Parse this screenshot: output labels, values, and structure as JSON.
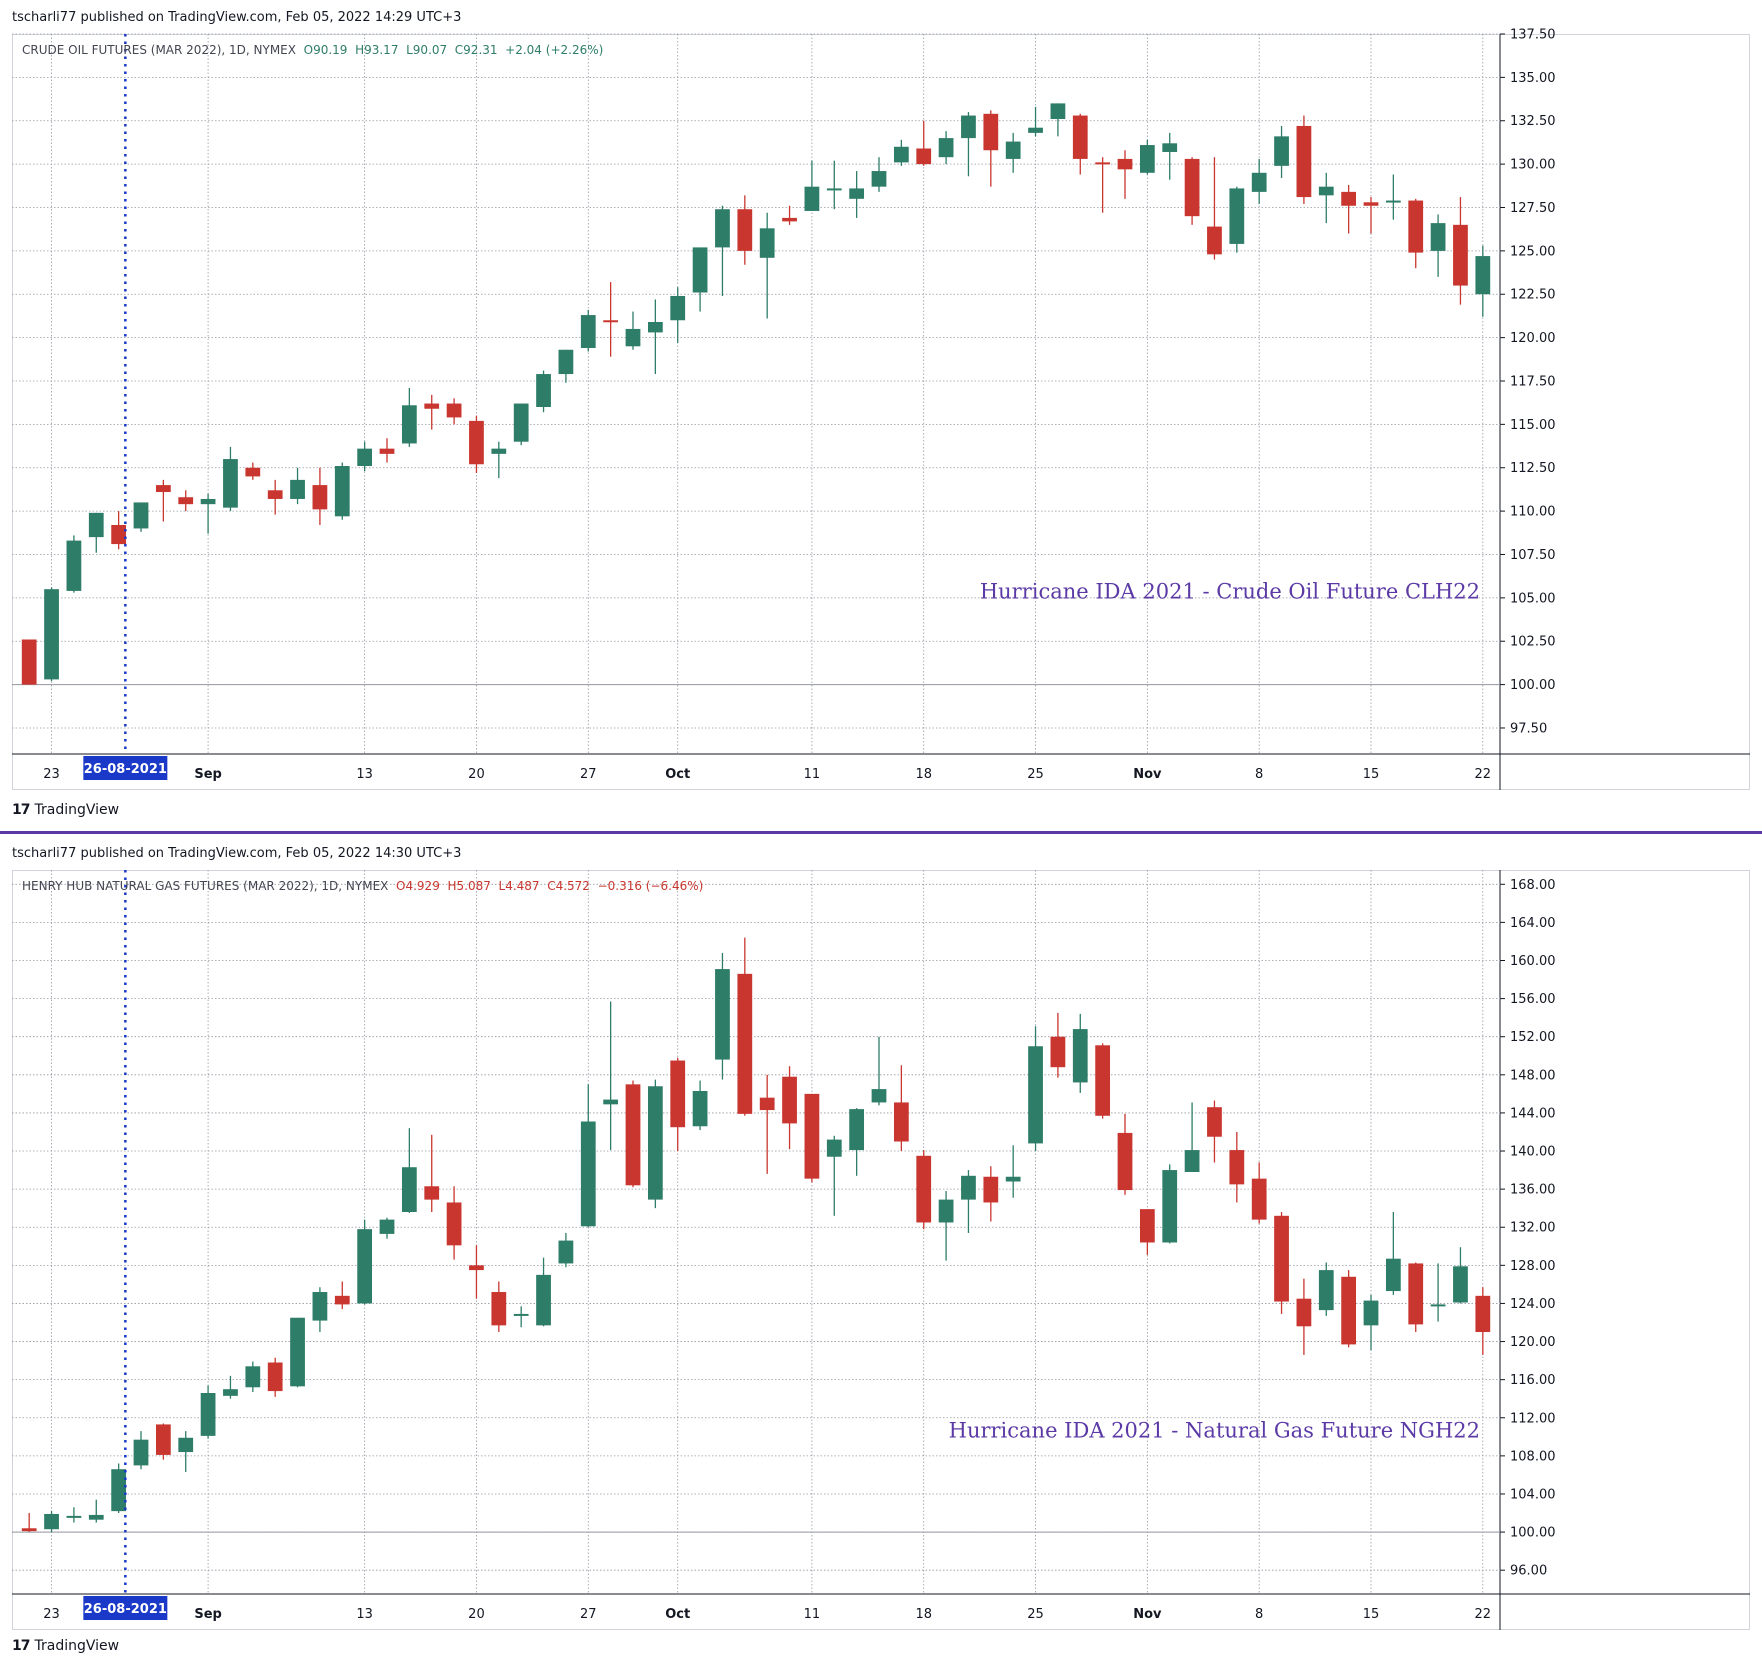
{
  "divider_color": "#5b3aa6",
  "colors": {
    "up": "#2e7d68",
    "down": "#c9362f",
    "marker": "#1a39c8",
    "watermark": "#5b3aa6"
  },
  "brand": {
    "icon": "tradingview-logo-icon",
    "label": "TradingView"
  },
  "chart_data": [
    {
      "type": "candlestick",
      "publisher": "tscharli77 published on TradingView.com, Feb 05, 2022 14:29 UTC+3",
      "symbol_line": "CRUDE OIL FUTURES (MAR 2022), 1D, NYMEX",
      "ohlc_text": {
        "o": "O90.19",
        "h": "H93.17",
        "l": "L90.07",
        "c": "C92.31",
        "chg": "+2.04 (+2.26%)"
      },
      "ohlc_color": "up",
      "watermark": "Hurricane IDA 2021 - Crude Oil Future CLH22",
      "ylim": [
        96.0,
        137.5
      ],
      "y_ticks": [
        "97.50",
        "100.00",
        "102.50",
        "105.00",
        "107.50",
        "110.00",
        "112.50",
        "115.00",
        "117.50",
        "120.00",
        "122.50",
        "125.00",
        "127.50",
        "130.00",
        "132.50",
        "135.00",
        "137.50"
      ],
      "y_tick_values": [
        97.5,
        100,
        102.5,
        105,
        107.5,
        110,
        112.5,
        115,
        117.5,
        120,
        122.5,
        125,
        127.5,
        130,
        132.5,
        135,
        137.5
      ],
      "baseline": 100,
      "x_labels": [
        {
          "i": 1,
          "text": "23",
          "bold": false
        },
        {
          "i": 8,
          "text": "Sep",
          "bold": true
        },
        {
          "i": 15,
          "text": "13",
          "bold": false
        },
        {
          "i": 20,
          "text": "20",
          "bold": false
        },
        {
          "i": 25,
          "text": "27",
          "bold": false
        },
        {
          "i": 29,
          "text": "Oct",
          "bold": true
        },
        {
          "i": 35,
          "text": "11",
          "bold": false
        },
        {
          "i": 40,
          "text": "18",
          "bold": false
        },
        {
          "i": 45,
          "text": "25",
          "bold": false
        },
        {
          "i": 50,
          "text": "Nov",
          "bold": true
        },
        {
          "i": 55,
          "text": "8",
          "bold": false
        },
        {
          "i": 60,
          "text": "15",
          "bold": false
        },
        {
          "i": 65,
          "text": "22",
          "bold": false
        }
      ],
      "marker": {
        "i": 4.3,
        "label": "26-08-2021"
      },
      "candles": [
        [
          102.6,
          102.6,
          100.0,
          100.0
        ],
        [
          100.3,
          105.6,
          100.2,
          105.5
        ],
        [
          105.4,
          108.6,
          105.3,
          108.3
        ],
        [
          108.5,
          109.9,
          107.6,
          109.9
        ],
        [
          109.2,
          110.0,
          107.8,
          108.1
        ],
        [
          109.0,
          110.5,
          108.8,
          110.5
        ],
        [
          111.5,
          111.8,
          109.4,
          111.1
        ],
        [
          110.8,
          111.2,
          110.0,
          110.4
        ],
        [
          110.4,
          111.0,
          108.7,
          110.7
        ],
        [
          110.2,
          113.7,
          110.0,
          113.0
        ],
        [
          112.5,
          112.8,
          111.8,
          112.0
        ],
        [
          111.2,
          111.8,
          109.8,
          110.7
        ],
        [
          110.7,
          112.5,
          110.4,
          111.8
        ],
        [
          111.5,
          112.5,
          109.2,
          110.1
        ],
        [
          109.7,
          112.8,
          109.5,
          112.6
        ],
        [
          112.6,
          114.0,
          112.3,
          113.6
        ],
        [
          113.6,
          114.2,
          112.8,
          113.3
        ],
        [
          113.9,
          117.1,
          113.7,
          116.1
        ],
        [
          116.2,
          116.7,
          114.7,
          115.9
        ],
        [
          116.2,
          116.5,
          115.0,
          115.4
        ],
        [
          115.2,
          115.5,
          112.2,
          112.7
        ],
        [
          113.3,
          114.0,
          111.9,
          113.6
        ],
        [
          114.0,
          116.0,
          113.8,
          116.2
        ],
        [
          116.0,
          118.1,
          115.7,
          117.9
        ],
        [
          117.9,
          119.3,
          117.4,
          119.3
        ],
        [
          119.4,
          121.6,
          119.2,
          121.3
        ],
        [
          121.0,
          123.2,
          118.9,
          120.9
        ],
        [
          119.5,
          121.5,
          119.3,
          120.5
        ],
        [
          120.3,
          122.2,
          117.9,
          120.9
        ],
        [
          121.0,
          122.9,
          119.7,
          122.4
        ],
        [
          122.6,
          124.9,
          121.5,
          125.2
        ],
        [
          125.2,
          127.6,
          122.4,
          127.4
        ],
        [
          127.4,
          128.2,
          124.2,
          125.0
        ],
        [
          124.6,
          127.2,
          121.1,
          126.3
        ],
        [
          126.9,
          127.6,
          126.5,
          126.7
        ],
        [
          127.3,
          130.2,
          127.3,
          128.7
        ],
        [
          128.6,
          130.2,
          127.4,
          128.6
        ],
        [
          128.0,
          129.6,
          126.9,
          128.6
        ],
        [
          128.7,
          130.4,
          128.4,
          129.6
        ],
        [
          130.1,
          131.4,
          129.9,
          131.0
        ],
        [
          130.9,
          132.5,
          129.9,
          130.0
        ],
        [
          130.4,
          131.9,
          130.0,
          131.5
        ],
        [
          131.5,
          133.0,
          129.3,
          132.8
        ],
        [
          132.9,
          133.1,
          128.7,
          130.8
        ],
        [
          130.3,
          131.8,
          129.5,
          131.3
        ],
        [
          131.8,
          133.3,
          131.6,
          132.1
        ],
        [
          132.6,
          133.5,
          131.6,
          133.5
        ],
        [
          132.8,
          132.9,
          129.4,
          130.3
        ],
        [
          130.1,
          130.4,
          127.2,
          130.0
        ],
        [
          130.3,
          130.8,
          128.0,
          129.7
        ],
        [
          129.5,
          131.4,
          129.4,
          131.1
        ],
        [
          130.7,
          131.8,
          129.1,
          131.2
        ],
        [
          130.3,
          130.4,
          126.5,
          127.0
        ],
        [
          126.4,
          130.4,
          124.5,
          124.8
        ],
        [
          125.4,
          128.7,
          124.9,
          128.6
        ],
        [
          128.4,
          130.3,
          127.7,
          129.5
        ],
        [
          129.9,
          132.2,
          129.2,
          131.6
        ],
        [
          132.2,
          132.8,
          127.7,
          128.1
        ],
        [
          128.2,
          129.5,
          126.6,
          128.7
        ],
        [
          128.4,
          128.8,
          126.0,
          127.6
        ],
        [
          127.8,
          128.1,
          126.0,
          127.6
        ],
        [
          127.8,
          129.4,
          126.8,
          127.9
        ],
        [
          127.9,
          128.0,
          124.0,
          124.9
        ],
        [
          125.0,
          127.1,
          123.5,
          126.6
        ],
        [
          126.5,
          128.1,
          121.9,
          123.0
        ],
        [
          122.5,
          125.3,
          121.2,
          124.7
        ]
      ]
    },
    {
      "type": "candlestick",
      "publisher": "tscharli77 published on TradingView.com, Feb 05, 2022 14:30 UTC+3",
      "symbol_line": "HENRY HUB NATURAL GAS FUTURES (MAR 2022), 1D, NYMEX",
      "ohlc_text": {
        "o": "O4.929",
        "h": "H5.087",
        "l": "L4.487",
        "c": "C4.572",
        "chg": "−0.316 (−6.46%)"
      },
      "ohlc_color": "down",
      "watermark": "Hurricane IDA 2021 - Natural Gas Future NGH22",
      "ylim": [
        93.5,
        169.5
      ],
      "y_ticks": [
        "96.00",
        "100.00",
        "104.00",
        "108.00",
        "112.00",
        "116.00",
        "120.00",
        "124.00",
        "128.00",
        "132.00",
        "136.00",
        "140.00",
        "144.00",
        "148.00",
        "152.00",
        "156.00",
        "160.00",
        "164.00",
        "168.00"
      ],
      "y_tick_values": [
        96,
        100,
        104,
        108,
        112,
        116,
        120,
        124,
        128,
        132,
        136,
        140,
        144,
        148,
        152,
        156,
        160,
        164,
        168
      ],
      "baseline": 100,
      "x_labels": [
        {
          "i": 1,
          "text": "23",
          "bold": false
        },
        {
          "i": 8,
          "text": "Sep",
          "bold": true
        },
        {
          "i": 15,
          "text": "13",
          "bold": false
        },
        {
          "i": 20,
          "text": "20",
          "bold": false
        },
        {
          "i": 25,
          "text": "27",
          "bold": false
        },
        {
          "i": 29,
          "text": "Oct",
          "bold": true
        },
        {
          "i": 35,
          "text": "11",
          "bold": false
        },
        {
          "i": 40,
          "text": "18",
          "bold": false
        },
        {
          "i": 45,
          "text": "25",
          "bold": false
        },
        {
          "i": 50,
          "text": "Nov",
          "bold": true
        },
        {
          "i": 55,
          "text": "8",
          "bold": false
        },
        {
          "i": 60,
          "text": "15",
          "bold": false
        },
        {
          "i": 65,
          "text": "22",
          "bold": false
        }
      ],
      "marker": {
        "i": 4.3,
        "label": "26-08-2021"
      },
      "candles": [
        [
          100.4,
          102.0,
          100.0,
          100.1
        ],
        [
          100.3,
          102.2,
          100.0,
          101.9
        ],
        [
          101.5,
          102.6,
          101.0,
          101.7
        ],
        [
          101.3,
          103.4,
          101.0,
          101.8
        ],
        [
          102.2,
          107.2,
          102.0,
          106.6
        ],
        [
          107.0,
          110.6,
          106.6,
          109.7
        ],
        [
          111.3,
          111.4,
          107.6,
          108.1
        ],
        [
          108.4,
          110.6,
          106.3,
          109.9
        ],
        [
          110.1,
          115.4,
          109.8,
          114.6
        ],
        [
          114.3,
          116.4,
          114.0,
          115.0
        ],
        [
          115.2,
          117.9,
          114.7,
          117.4
        ],
        [
          117.8,
          118.3,
          114.2,
          114.8
        ],
        [
          115.3,
          122.4,
          115.2,
          122.5
        ],
        [
          122.2,
          125.7,
          121.0,
          125.2
        ],
        [
          124.8,
          126.3,
          123.4,
          123.9
        ],
        [
          124.0,
          132.8,
          123.9,
          131.8
        ],
        [
          131.3,
          133.0,
          130.8,
          132.8
        ],
        [
          133.6,
          142.4,
          133.5,
          138.3
        ],
        [
          136.3,
          141.7,
          133.6,
          134.9
        ],
        [
          134.6,
          136.3,
          128.6,
          130.1
        ],
        [
          128.0,
          130.1,
          124.5,
          127.5
        ],
        [
          125.2,
          126.3,
          121.0,
          121.7
        ],
        [
          122.7,
          123.7,
          121.5,
          122.9
        ],
        [
          121.7,
          128.8,
          121.6,
          127.0
        ],
        [
          128.2,
          131.4,
          127.8,
          130.6
        ],
        [
          132.1,
          147.0,
          132.0,
          143.1
        ],
        [
          144.9,
          155.7,
          140.1,
          145.4
        ],
        [
          147.0,
          147.4,
          136.2,
          136.4
        ],
        [
          134.9,
          147.5,
          134.0,
          146.8
        ],
        [
          149.5,
          149.8,
          140.0,
          142.5
        ],
        [
          142.6,
          147.4,
          142.2,
          146.3
        ],
        [
          149.6,
          160.8,
          147.5,
          159.1
        ],
        [
          158.6,
          162.4,
          143.7,
          143.9
        ],
        [
          145.6,
          148.0,
          137.6,
          144.3
        ],
        [
          147.8,
          148.9,
          140.2,
          142.9
        ],
        [
          146.0,
          146.0,
          136.7,
          137.1
        ],
        [
          139.4,
          141.6,
          133.2,
          141.2
        ],
        [
          140.1,
          144.5,
          137.4,
          144.4
        ],
        [
          145.1,
          152.0,
          144.8,
          146.5
        ],
        [
          145.1,
          149.0,
          140.0,
          141.0
        ],
        [
          139.5,
          140.1,
          131.8,
          132.5
        ],
        [
          132.5,
          135.8,
          128.5,
          134.9
        ],
        [
          134.9,
          138.0,
          131.4,
          137.4
        ],
        [
          137.3,
          138.4,
          132.6,
          134.6
        ],
        [
          136.8,
          140.6,
          135.1,
          137.3
        ],
        [
          140.8,
          153.1,
          140.0,
          151.0
        ],
        [
          152.0,
          154.5,
          147.7,
          148.8
        ],
        [
          147.2,
          154.4,
          146.1,
          152.8
        ],
        [
          151.1,
          151.3,
          143.4,
          143.7
        ],
        [
          141.9,
          143.9,
          135.4,
          135.9
        ],
        [
          133.9,
          133.9,
          129.1,
          130.4
        ],
        [
          130.4,
          138.6,
          130.3,
          138.0
        ],
        [
          137.8,
          145.1,
          137.8,
          140.1
        ],
        [
          144.6,
          145.3,
          138.8,
          141.5
        ],
        [
          140.1,
          142.0,
          134.6,
          136.5
        ],
        [
          137.1,
          138.8,
          132.4,
          132.8
        ],
        [
          133.2,
          133.6,
          122.9,
          124.2
        ],
        [
          124.5,
          126.6,
          118.6,
          121.6
        ],
        [
          123.3,
          128.3,
          122.7,
          127.5
        ],
        [
          126.8,
          127.5,
          119.4,
          119.7
        ],
        [
          121.7,
          124.9,
          119.1,
          124.3
        ],
        [
          125.3,
          133.6,
          124.9,
          128.7
        ],
        [
          128.2,
          128.3,
          121.0,
          121.8
        ],
        [
          123.8,
          128.2,
          122.1,
          123.9
        ],
        [
          124.1,
          129.9,
          124.0,
          127.9
        ],
        [
          124.8,
          125.7,
          118.6,
          121.0
        ]
      ]
    }
  ]
}
